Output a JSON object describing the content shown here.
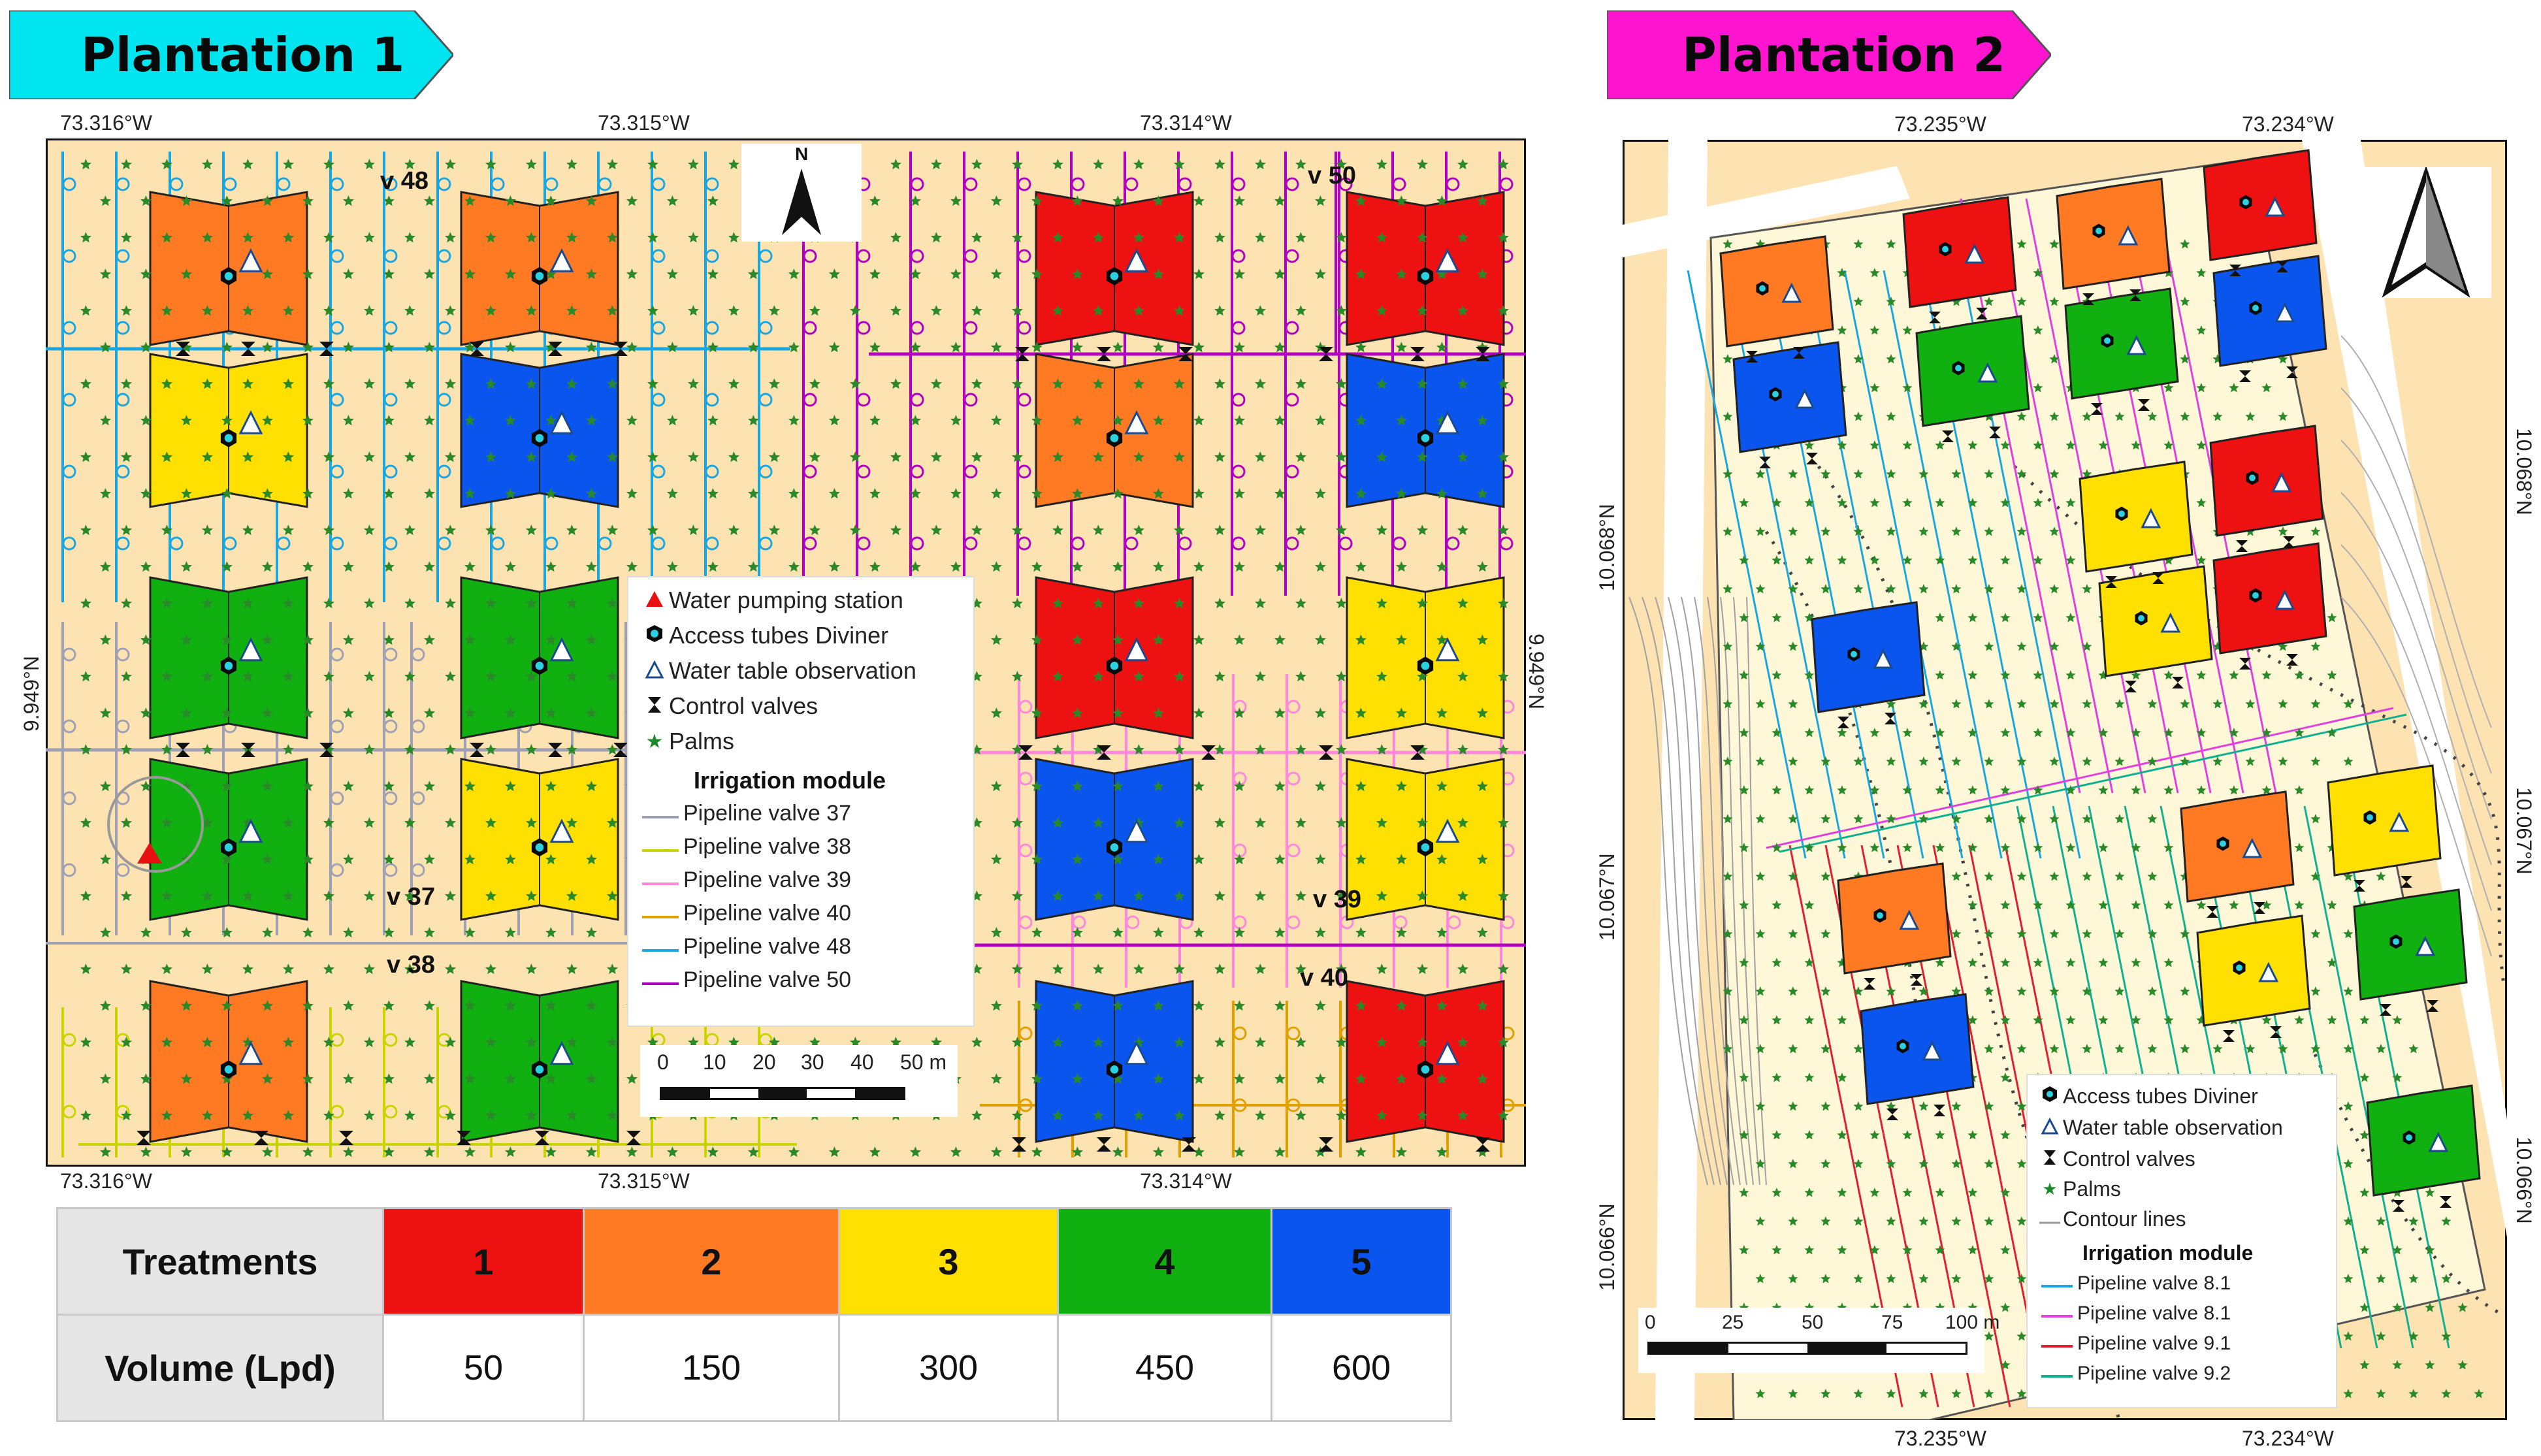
{
  "banners": {
    "p1": {
      "title": "Plantation 1",
      "color": "#00e5f0"
    },
    "p2": {
      "title": "Plantation 2",
      "color": "#ff14d0"
    }
  },
  "map1": {
    "top_ticks": [
      "73.316°W",
      "73.315°W",
      "73.314°W"
    ],
    "bottom_ticks": [
      "73.316°W",
      "73.315°W",
      "73.314°W"
    ],
    "left_tick": "9.949°N",
    "right_tick": "9.949°N",
    "north_letter": "N",
    "valve_labels": [
      "v 48",
      "v 50",
      "v 37",
      "v 38",
      "v 39",
      "v 40"
    ],
    "legend": {
      "symbols": [
        {
          "label": "Water pumping station",
          "icon": "red-triangle-icon"
        },
        {
          "label": "Access tubes Diviner",
          "icon": "hexagon-icon"
        },
        {
          "label": "Water table observation",
          "icon": "open-triangle-icon"
        },
        {
          "label": "Control valves",
          "icon": "hourglass-icon"
        },
        {
          "label": "Palms",
          "icon": "star-icon"
        }
      ],
      "heading": "Irrigation module",
      "lines": [
        {
          "label": "Pipeline valve 37",
          "color": "#a0a0b4"
        },
        {
          "label": "Pipeline valve 38",
          "color": "#c8d400"
        },
        {
          "label": "Pipeline valve 39",
          "color": "#ff88dd"
        },
        {
          "label": "Pipeline valve 40",
          "color": "#e0a000"
        },
        {
          "label": "Pipeline valve 48",
          "color": "#1aa6e0"
        },
        {
          "label": "Pipeline valve 50",
          "color": "#b000c0"
        }
      ]
    },
    "scale": {
      "ticks": [
        "0",
        "10",
        "20",
        "30",
        "40",
        "50 m"
      ]
    }
  },
  "map2": {
    "top_ticks": [
      "73.235°W",
      "73.234°W"
    ],
    "bottom_ticks": [
      "73.235°W",
      "73.234°W"
    ],
    "left_ticks": [
      "10.068°N",
      "10.067°N",
      "10.066°N"
    ],
    "right_ticks": [
      "10.068°N",
      "10.067°N",
      "10.066°N"
    ],
    "legend": {
      "symbols": [
        {
          "label": "Access tubes Diviner",
          "icon": "hexagon-icon"
        },
        {
          "label": "Water table observation",
          "icon": "open-triangle-icon"
        },
        {
          "label": "Control valves",
          "icon": "hourglass-icon"
        },
        {
          "label": "Palms",
          "icon": "star-icon"
        },
        {
          "label": "Contour lines",
          "icon": "contour-line-icon"
        }
      ],
      "heading": "Irrigation module",
      "lines": [
        {
          "label": "Pipeline valve 8.1",
          "color": "#1aa6e0"
        },
        {
          "label": "Pipeline valve 8.1",
          "color": "#e040e0"
        },
        {
          "label": "Pipeline valve 9.1",
          "color": "#e02030"
        },
        {
          "label": "Pipeline valve 9.2",
          "color": "#10b090"
        }
      ]
    },
    "scale": {
      "ticks": [
        "0",
        "25",
        "50",
        "75",
        "100 m"
      ]
    }
  },
  "treatments": {
    "header_label": "Treatments",
    "volume_label": "Volume (Lpd)",
    "items": [
      {
        "id": "1",
        "volume": "50",
        "color": "#ee1111"
      },
      {
        "id": "2",
        "volume": "150",
        "color": "#ff7a22"
      },
      {
        "id": "3",
        "volume": "300",
        "color": "#ffe000"
      },
      {
        "id": "4",
        "volume": "450",
        "color": "#10b010"
      },
      {
        "id": "5",
        "volume": "600",
        "color": "#0a55ee"
      }
    ]
  }
}
